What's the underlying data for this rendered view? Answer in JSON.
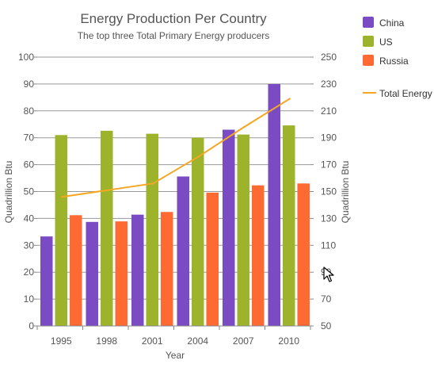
{
  "chart_data": {
    "type": "bar",
    "title": "Energy Production Per Country",
    "subtitle": "The top three Total Primary Energy producers",
    "xlabel": "Year",
    "ylabel": "Quadrillion Btu",
    "y2label": "Quadrillion Btu",
    "categories": [
      "1995",
      "1998",
      "2001",
      "2004",
      "2007",
      "2010"
    ],
    "ylim": [
      0,
      100
    ],
    "yticks": [
      "0",
      "10",
      "20",
      "30",
      "40",
      "50",
      "60",
      "70",
      "80",
      "90",
      "100"
    ],
    "y2lim": [
      50,
      250
    ],
    "y2ticks": [
      "50",
      "70",
      "90",
      "110",
      "130",
      "150",
      "170",
      "190",
      "210",
      "230",
      "250"
    ],
    "grid": true,
    "legend_position": "top-right",
    "series": [
      {
        "name": "China",
        "color": "#7b4bc4",
        "values": [
          33.3,
          38.7,
          41.4,
          55.6,
          73,
          90
        ]
      },
      {
        "name": "US",
        "color": "#9db32b",
        "values": [
          71,
          72.6,
          71.5,
          70,
          71.2,
          74.6
        ]
      },
      {
        "name": "Russia",
        "color": "#ff6a33",
        "values": [
          41.2,
          38.9,
          42.4,
          49.6,
          52.3,
          53
        ]
      }
    ],
    "line_series": {
      "name": "Total Energy",
      "color": "#f5a623",
      "axis": "right",
      "values": [
        146,
        151,
        156,
        176,
        198,
        219
      ]
    }
  }
}
